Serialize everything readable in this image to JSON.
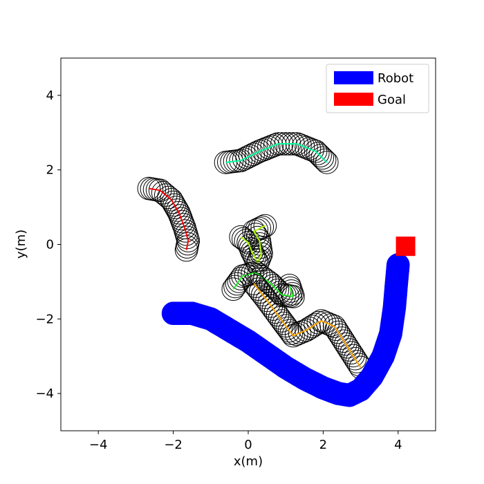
{
  "chart_data": {
    "type": "scatter",
    "xlabel": "x(m)",
    "ylabel": "y(m)",
    "xlim": [
      -5,
      5
    ],
    "ylim": [
      -5,
      5
    ],
    "xticks": [
      -4,
      -2,
      0,
      2,
      4
    ],
    "yticks": [
      -4,
      -2,
      0,
      2,
      4
    ],
    "xtick_labels": [
      "−4",
      "−2",
      "0",
      "2",
      "4"
    ],
    "ytick_labels": [
      "−4",
      "−2",
      "0",
      "2",
      "4"
    ],
    "grid": false,
    "legend_position": "top-right",
    "legend": [
      {
        "label": "Robot",
        "color": "#0000ff"
      },
      {
        "label": "Goal",
        "color": "#ff0000"
      }
    ],
    "robot": {
      "name": "Robot",
      "color": "#0000ff",
      "path": [
        [
          -2.0,
          -1.85
        ],
        [
          -1.5,
          -1.85
        ],
        [
          -1.0,
          -2.0
        ],
        [
          -0.5,
          -2.3
        ],
        [
          0.0,
          -2.6
        ],
        [
          0.5,
          -2.95
        ],
        [
          1.0,
          -3.3
        ],
        [
          1.5,
          -3.6
        ],
        [
          2.0,
          -3.85
        ],
        [
          2.4,
          -4.0
        ],
        [
          2.7,
          -4.05
        ],
        [
          3.0,
          -3.9
        ],
        [
          3.3,
          -3.55
        ],
        [
          3.6,
          -3.0
        ],
        [
          3.8,
          -2.4
        ],
        [
          3.9,
          -1.7
        ],
        [
          3.95,
          -1.1
        ],
        [
          4.0,
          -0.55
        ]
      ]
    },
    "goal": {
      "name": "Goal",
      "x": 4.2,
      "y": -0.05,
      "color": "#ff0000"
    },
    "humans": [
      {
        "color": "#ff0000",
        "path": [
          [
            -2.65,
            1.5
          ],
          [
            -2.35,
            1.45
          ],
          [
            -2.05,
            1.2
          ],
          [
            -1.85,
            0.85
          ],
          [
            -1.7,
            0.45
          ],
          [
            -1.6,
            0.1
          ],
          [
            -1.65,
            -0.15
          ]
        ]
      },
      {
        "color": "#00ff99",
        "path": [
          [
            -0.6,
            2.2
          ],
          [
            -0.2,
            2.25
          ],
          [
            0.3,
            2.5
          ],
          [
            0.8,
            2.7
          ],
          [
            1.3,
            2.7
          ],
          [
            1.8,
            2.5
          ],
          [
            2.1,
            2.2
          ]
        ]
      },
      {
        "color": "#aaff00",
        "path": [
          [
            -0.2,
            0.2
          ],
          [
            0.0,
            0.05
          ],
          [
            0.1,
            -0.2
          ],
          [
            0.25,
            -0.5
          ],
          [
            0.35,
            -0.25
          ],
          [
            0.3,
            0.1
          ],
          [
            0.15,
            0.35
          ],
          [
            0.45,
            0.5
          ]
        ]
      },
      {
        "color": "#22ee22",
        "path": [
          [
            -0.4,
            -1.2
          ],
          [
            -0.15,
            -0.85
          ],
          [
            0.2,
            -0.75
          ],
          [
            0.6,
            -1.05
          ],
          [
            0.9,
            -1.35
          ],
          [
            1.2,
            -1.4
          ],
          [
            1.1,
            -1.1
          ]
        ]
      },
      {
        "color": "#ffa500",
        "path": [
          [
            0.15,
            -1.05
          ],
          [
            0.5,
            -1.5
          ],
          [
            0.9,
            -2.05
          ],
          [
            1.2,
            -2.45
          ],
          [
            1.55,
            -2.3
          ],
          [
            1.95,
            -2.05
          ],
          [
            2.3,
            -2.2
          ],
          [
            2.65,
            -2.75
          ],
          [
            3.0,
            -3.3
          ]
        ]
      }
    ]
  }
}
